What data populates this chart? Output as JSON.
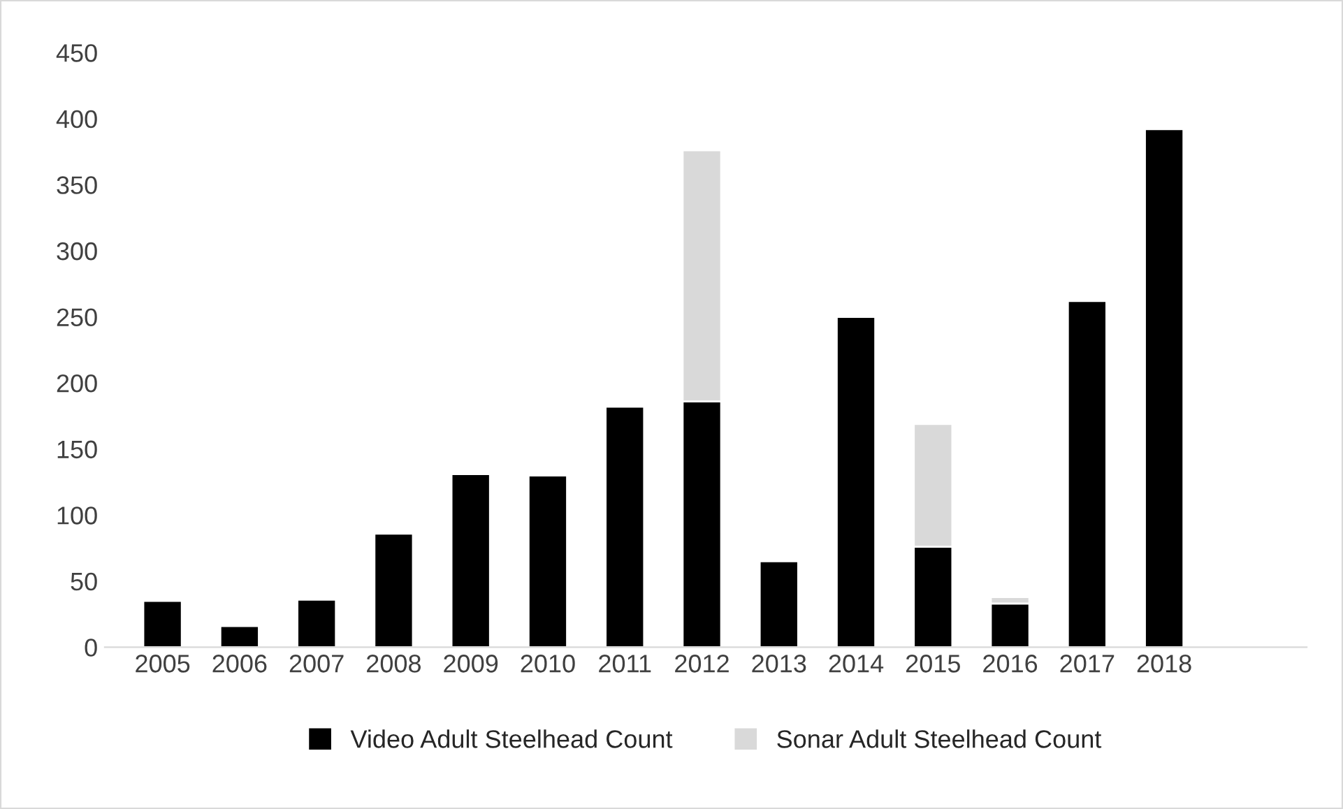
{
  "chart_data": {
    "type": "bar",
    "stacked": true,
    "categories": [
      "2005",
      "2006",
      "2007",
      "2008",
      "2009",
      "2010",
      "2011",
      "2012",
      "2013",
      "2014",
      "2015",
      "2016",
      "2017",
      "2018"
    ],
    "series": [
      {
        "name": "Video Adult Steelhead Count",
        "color": "#000000",
        "values": [
          35,
          16,
          36,
          86,
          131,
          130,
          182,
          186,
          65,
          250,
          76,
          33,
          262,
          392
        ]
      },
      {
        "name": "Sonar Adult Steelhead Count",
        "color": "#d9d9d9",
        "values": [
          null,
          null,
          null,
          null,
          null,
          null,
          null,
          190,
          null,
          null,
          93,
          5,
          null,
          null
        ]
      }
    ],
    "ylim": [
      0,
      450
    ],
    "yticks": [
      0,
      50,
      100,
      150,
      200,
      250,
      300,
      350,
      400,
      450
    ],
    "grid": false,
    "legend": "bottom"
  }
}
